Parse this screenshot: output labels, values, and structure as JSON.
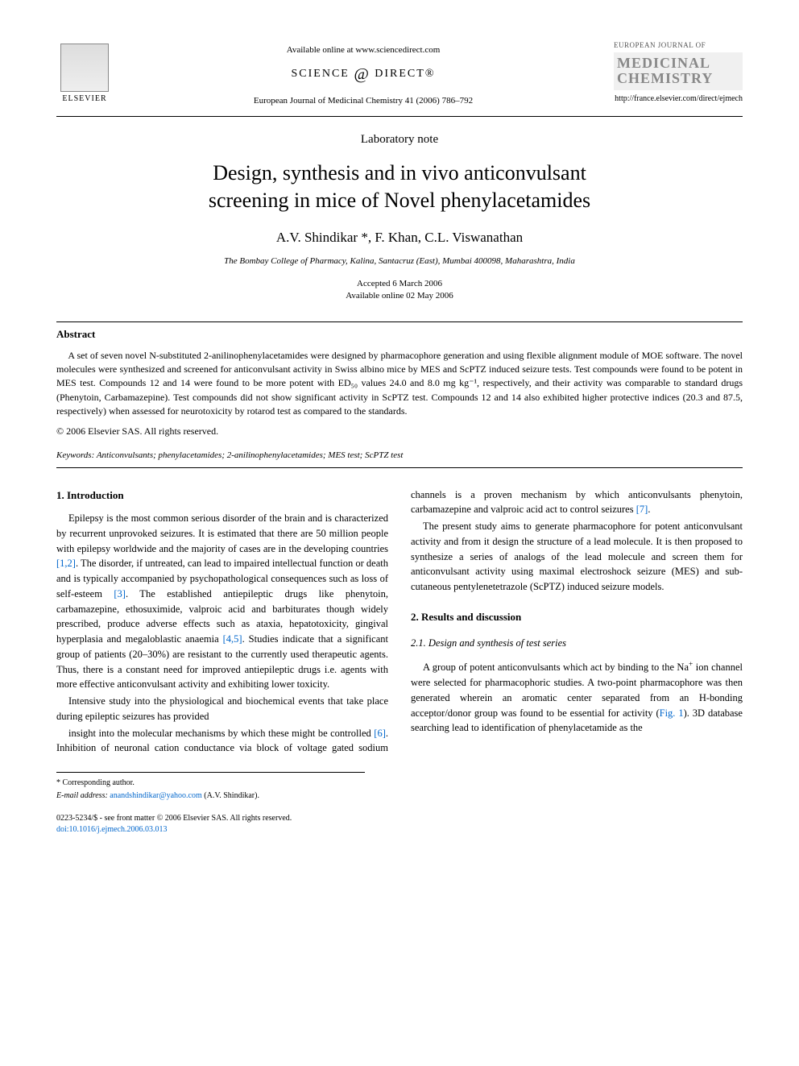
{
  "header": {
    "publisher": "ELSEVIER",
    "available_online": "Available online at www.sciencedirect.com",
    "science_direct": "SCIENCE",
    "science_direct2": "DIRECT®",
    "citation": "European Journal of Medicinal Chemistry 41 (2006) 786–792",
    "journal_top": "EUROPEAN JOURNAL OF",
    "journal_main1": "MEDICINAL",
    "journal_main2": "CHEMISTRY",
    "journal_url": "http://france.elsevier.com/direct/ejmech"
  },
  "article": {
    "type": "Laboratory note",
    "title_line1": "Design, synthesis and in vivo anticonvulsant",
    "title_line2": "screening in mice of Novel phenylacetamides",
    "authors": "A.V. Shindikar *, F. Khan, C.L. Viswanathan",
    "affiliation": "The Bombay College of Pharmacy, Kalina, Santacruz (East), Mumbai 400098, Maharashtra, India",
    "accepted": "Accepted 6 March 2006",
    "online": "Available online 02 May 2006"
  },
  "abstract": {
    "heading": "Abstract",
    "body": "A set of seven novel N-substituted 2-anilinophenylacetamides were designed by pharmacophore generation and using flexible alignment module of MOE software. The novel molecules were synthesized and screened for anticonvulsant activity in Swiss albino mice by MES and ScPTZ induced seizure tests. Test compounds were found to be potent in MES test. Compounds 12 and 14 were found to be more potent with ED₅₀ values 24.0 and 8.0 mg kg⁻¹, respectively, and their activity was comparable to standard drugs (Phenytoin, Carbamazepine). Test compounds did not show significant activity in ScPTZ test. Compounds 12 and 14 also exhibited higher protective indices (20.3 and 87.5, respectively) when assessed for neurotoxicity by rotarod test as compared to the standards.",
    "copyright": "© 2006 Elsevier SAS. All rights reserved."
  },
  "keywords": {
    "label": "Keywords:",
    "text": "Anticonvulsants; phenylacetamides; 2-anilinophenylacetamides; MES test; ScPTZ test"
  },
  "sections": {
    "s1_heading": "1. Introduction",
    "s1_p1": "Epilepsy is the most common serious disorder of the brain and is characterized by recurrent unprovoked seizures. It is estimated that there are 50 million people with epilepsy worldwide and the majority of cases are in the developing countries [1,2]. The disorder, if untreated, can lead to impaired intellectual function or death and is typically accompanied by psychopathological consequences such as loss of self-esteem [3]. The established antiepileptic drugs like phenytoin, carbamazepine, ethosuximide, valproic acid and barbiturates though widely prescribed, produce adverse effects such as ataxia, hepatotoxicity, gingival hyperplasia and megaloblastic anaemia [4,5]. Studies indicate that a significant group of patients (20–30%) are resistant to the currently used therapeutic agents. Thus, there is a constant need for improved antiepileptic drugs i.e. agents with more effective anticonvulsant activity and exhibiting lower toxicity.",
    "s1_p2": "Intensive study into the physiological and biochemical events that take place during epileptic seizures has provided",
    "s1_p3": "insight into the molecular mechanisms by which these might be controlled [6]. Inhibition of neuronal cation conductance via block of voltage gated sodium channels is a proven mechanism by which anticonvulsants phenytoin, carbamazepine and valproic acid act to control seizures [7].",
    "s1_p4": "The present study aims to generate pharmacophore for potent anticonvulsant activity and from it design the structure of a lead molecule. It is then proposed to synthesize a series of analogs of the lead molecule and screen them for anticonvulsant activity using maximal electroshock seizure (MES) and sub-cutaneous pentylenetetrazole (ScPTZ) induced seizure models.",
    "s2_heading": "2. Results and discussion",
    "s21_heading": "2.1. Design and synthesis of test series",
    "s21_p1": "A group of potent anticonvulsants which act by binding to the Na⁺ ion channel were selected for pharmacophoric studies. A two-point pharmacophore was then generated wherein an aromatic center separated from an H-bonding acceptor/donor group was found to be essential for activity (Fig. 1). 3D database searching lead to identification of phenylacetamide as the"
  },
  "footer": {
    "corresponding": "* Corresponding author.",
    "email_label": "E-mail address:",
    "email": "anandshindikar@yahoo.com",
    "email_suffix": "(A.V. Shindikar).",
    "issn": "0223-5234/$ - see front matter © 2006 Elsevier SAS. All rights reserved.",
    "doi": "doi:10.1016/j.ejmech.2006.03.013"
  },
  "refs": {
    "r12": "[1,2]",
    "r3": "[3]",
    "r45": "[4,5]",
    "r6": "[6]",
    "r7": "[7]",
    "fig1": "Fig. 1"
  },
  "colors": {
    "link": "#0066cc",
    "text": "#000000",
    "bg": "#ffffff",
    "logo_gray": "#888888"
  },
  "typography": {
    "body_font": "Georgia, Times New Roman, serif",
    "title_size_pt": 20,
    "body_size_pt": 10,
    "abstract_size_pt": 9
  }
}
